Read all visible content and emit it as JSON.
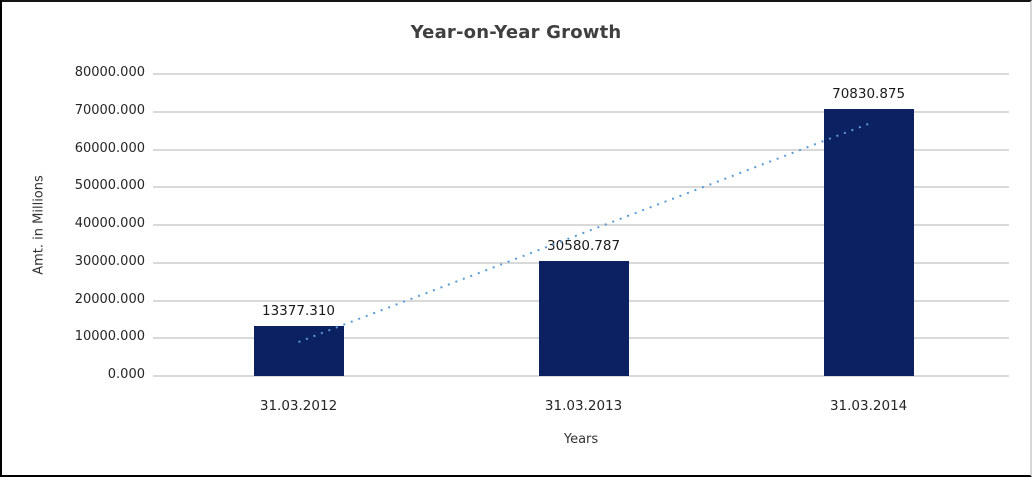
{
  "chart_data": {
    "type": "bar",
    "title": "Year-on-Year Growth",
    "xlabel": "Years",
    "ylabel": "Amt. in Millions",
    "categories": [
      "31.03.2012",
      "31.03.2013",
      "31.03.2014"
    ],
    "values": [
      13377.31,
      30580.787,
      70830.875
    ],
    "data_labels": [
      "13377.310",
      "30580.787",
      "70830.875"
    ],
    "ylim": [
      0,
      80000
    ],
    "ytick_step": 10000,
    "yticks": [
      "0.000",
      "10000.000",
      "20000.000",
      "30000.000",
      "40000.000",
      "50000.000",
      "60000.000",
      "70000.000",
      "80000.000"
    ],
    "grid": true,
    "legend": "none",
    "colors": {
      "bar": "#0b2161",
      "gridline": "#d9d9d9",
      "trendline": "#5b9bd5",
      "title_text": "#3f3f3f",
      "tick_text": "#262626"
    },
    "trendline": {
      "type": "linear",
      "style": "dotted",
      "start_value": 9000,
      "end_value": 66800
    }
  }
}
